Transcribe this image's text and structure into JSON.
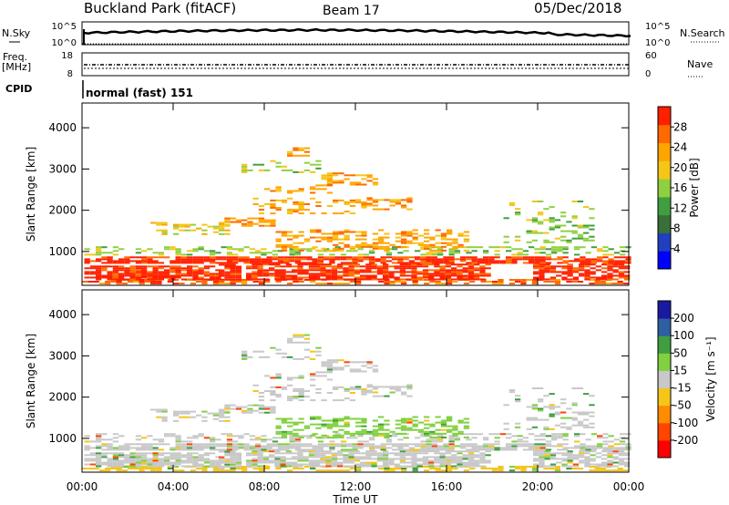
{
  "header": {
    "title": "Buckland Park (fitACF)",
    "beam": "Beam 17",
    "date": "05/Dec/2018"
  },
  "strips": {
    "nsky_label": "N.Sky",
    "nsky_ticks": [
      "10^5",
      "10^0"
    ],
    "nsearch_label": "N.Search",
    "nsearch_ticks": [
      "10^5",
      "10^0"
    ],
    "freq_label": "Freq.",
    "freq_unit": "[MHz]",
    "freq_ticks": [
      "18",
      "8"
    ],
    "nave_label": "Nave",
    "nave_ticks": [
      "60",
      "0"
    ],
    "cpid_label": "CPID",
    "cpid_value": "normal (fast) 151"
  },
  "colors": {
    "power": [
      "#0000ff",
      "#2040c0",
      "#3a6f3a",
      "#3f9f40",
      "#90d040",
      "#f5c518",
      "#ffa500",
      "#ff6a00",
      "#ff2000"
    ],
    "velocity": [
      "#ff0000",
      "#ff4500",
      "#ff8c00",
      "#f5c518",
      "#c8c8c8",
      "#80d040",
      "#3f9f40",
      "#2e5fa0",
      "#1a1aa0"
    ]
  },
  "chart_data": [
    {
      "type": "heatmap",
      "panel": "power",
      "ylabel": "Slant Range [km]",
      "yticks": [
        1000,
        2000,
        3000,
        4000
      ],
      "ylim": [
        180,
        4600
      ],
      "xlim": [
        0,
        24
      ],
      "colorbar_label": "Power [dB]",
      "colorbar_ticks": [
        "4",
        "8",
        "12",
        "16",
        "20",
        "24",
        "28"
      ],
      "colorbar_range": [
        0,
        32
      ]
    },
    {
      "type": "heatmap",
      "panel": "velocity",
      "ylabel": "Slant Range [km]",
      "yticks": [
        1000,
        2000,
        3000,
        4000
      ],
      "ylim": [
        180,
        4600
      ],
      "xlim": [
        0,
        24
      ],
      "xticks": [
        "00:00",
        "04:00",
        "08:00",
        "12:00",
        "16:00",
        "20:00",
        "00:00"
      ],
      "xlabel": "Time UT",
      "colorbar_label": "Velocity [m s⁻¹]",
      "colorbar_ticks": [
        "-200",
        "-100",
        "-50",
        "-15",
        "15",
        "50",
        "100",
        "200"
      ]
    }
  ]
}
